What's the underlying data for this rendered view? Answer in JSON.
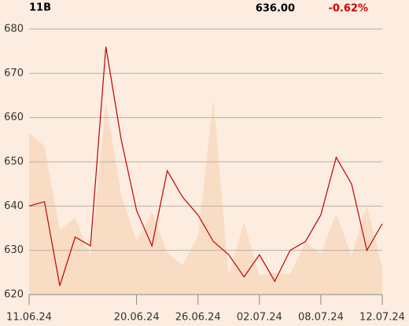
{
  "header": {
    "symbol": "11B",
    "price": "636.00",
    "change": "-0.62%"
  },
  "chart_data": {
    "type": "line",
    "categories": [
      "11.06.24",
      null,
      null,
      null,
      null,
      null,
      null,
      "20.06.24",
      null,
      null,
      null,
      "26.06.24",
      null,
      null,
      null,
      "02.07.24",
      null,
      null,
      null,
      "08.07.24",
      null,
      null,
      null,
      "12.07.24"
    ],
    "series": [
      {
        "color": "#f9dcc4",
        "kind": "area",
        "values": [
          656.6,
          653.6,
          634.7,
          637.4,
          628.7,
          663.5,
          642.5,
          632,
          638.6,
          629.4,
          626.6,
          633.3,
          664.2,
          624.4,
          636.3,
          624.3,
          625,
          624.6,
          631.9,
          629.2,
          638.3,
          628.7,
          640,
          626.2
        ]
      },
      {
        "color": "#c00000",
        "kind": "line",
        "values": [
          640,
          641,
          622,
          633,
          631,
          676,
          655,
          639,
          631,
          648,
          642,
          638,
          632,
          629,
          624,
          629,
          623,
          630,
          632,
          638,
          651,
          645,
          630,
          636
        ]
      }
    ],
    "ylim": [
      620,
      680
    ],
    "yticks": [
      620,
      630,
      640,
      650,
      660,
      670,
      680
    ],
    "grid": true
  }
}
